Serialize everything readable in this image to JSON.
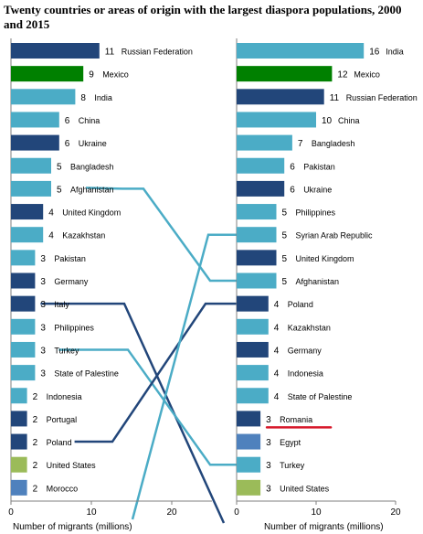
{
  "chart_data": {
    "type": "bar",
    "title": "Twenty countries or areas of origin with the largest diaspora populations, 2000 and 2015",
    "orientation": "horizontal",
    "grid": false,
    "legend": "none",
    "colors": {
      "dark": "#22467a",
      "light": "#4bacc6",
      "green_2000": "#008000",
      "green_light": "#9bbb59",
      "mid_blue": "#4f81bd",
      "connector_light": "#4bacc6",
      "connector_dark": "#22467a",
      "highlight_underline": "#d7182a"
    },
    "panels": [
      {
        "year": "2000",
        "xlabel": "Number of migrants (millions)",
        "xlim": [
          0,
          25
        ],
        "xticks": [
          0,
          10,
          20
        ],
        "bars": [
          {
            "label": "Russian Federation",
            "value": 11,
            "color": "dark"
          },
          {
            "label": "Mexico",
            "value": 9,
            "color": "green_2000"
          },
          {
            "label": "India",
            "value": 8,
            "color": "light"
          },
          {
            "label": "China",
            "value": 6,
            "color": "light"
          },
          {
            "label": "Ukraine",
            "value": 6,
            "color": "dark"
          },
          {
            "label": "Bangladesh",
            "value": 5,
            "color": "light"
          },
          {
            "label": "Afghanistan",
            "value": 5,
            "color": "light"
          },
          {
            "label": "United Kingdom",
            "value": 4,
            "color": "dark"
          },
          {
            "label": "Kazakhstan",
            "value": 4,
            "color": "light"
          },
          {
            "label": "Pakistan",
            "value": 3,
            "color": "light"
          },
          {
            "label": "Germany",
            "value": 3,
            "color": "dark"
          },
          {
            "label": "Italy",
            "value": 3,
            "color": "dark"
          },
          {
            "label": "Philippines",
            "value": 3,
            "color": "light"
          },
          {
            "label": "Turkey",
            "value": 3,
            "color": "light"
          },
          {
            "label": "State of Palestine",
            "value": 3,
            "color": "light"
          },
          {
            "label": "Indonesia",
            "value": 2,
            "color": "light"
          },
          {
            "label": "Portugal",
            "value": 2,
            "color": "dark"
          },
          {
            "label": "Poland",
            "value": 2,
            "color": "dark"
          },
          {
            "label": "United States",
            "value": 2,
            "color": "green_light"
          },
          {
            "label": "Morocco",
            "value": 2,
            "color": "mid_blue"
          }
        ]
      },
      {
        "year": "2015",
        "xlabel": "Number of migrants (millions)",
        "xlim": [
          0,
          20
        ],
        "xticks": [
          0,
          10,
          20
        ],
        "bars": [
          {
            "label": "India",
            "value": 16,
            "color": "light"
          },
          {
            "label": "Mexico",
            "value": 12,
            "color": "green_2000"
          },
          {
            "label": "Russian Federation",
            "value": 11,
            "color": "dark"
          },
          {
            "label": "China",
            "value": 10,
            "color": "light"
          },
          {
            "label": "Bangladesh",
            "value": 7,
            "color": "light"
          },
          {
            "label": "Pakistan",
            "value": 6,
            "color": "light"
          },
          {
            "label": "Ukraine",
            "value": 6,
            "color": "dark"
          },
          {
            "label": "Philippines",
            "value": 5,
            "color": "light"
          },
          {
            "label": "Syrian Arab Republic",
            "value": 5,
            "color": "light"
          },
          {
            "label": "United Kingdom",
            "value": 5,
            "color": "dark"
          },
          {
            "label": "Afghanistan",
            "value": 5,
            "color": "light"
          },
          {
            "label": "Poland",
            "value": 4,
            "color": "dark"
          },
          {
            "label": "Kazakhstan",
            "value": 4,
            "color": "light"
          },
          {
            "label": "Germany",
            "value": 4,
            "color": "dark"
          },
          {
            "label": "Indonesia",
            "value": 4,
            "color": "light"
          },
          {
            "label": "State of Palestine",
            "value": 4,
            "color": "light"
          },
          {
            "label": "Romania",
            "value": 3,
            "color": "dark",
            "underlined": true
          },
          {
            "label": "Egypt",
            "value": 3,
            "color": "mid_blue"
          },
          {
            "label": "Turkey",
            "value": 3,
            "color": "light"
          },
          {
            "label": "United States",
            "value": 3,
            "color": "green_light"
          }
        ]
      }
    ],
    "connectors": [
      {
        "country": "Afghanistan",
        "from_rank": 7,
        "to_rank": 11,
        "color": "connector_light"
      },
      {
        "country": "Italy",
        "from_rank": 12,
        "to_rank": "off-chart",
        "color": "connector_dark"
      },
      {
        "country": "Turkey",
        "from_rank": 14,
        "to_rank": 19,
        "color": "connector_light"
      },
      {
        "country": "Poland",
        "from_rank": 18,
        "to_rank": 12,
        "color": "connector_dark"
      },
      {
        "country": "Syrian Arab Republic",
        "from_rank": "off-chart",
        "to_rank": 9,
        "color": "connector_light"
      }
    ]
  }
}
